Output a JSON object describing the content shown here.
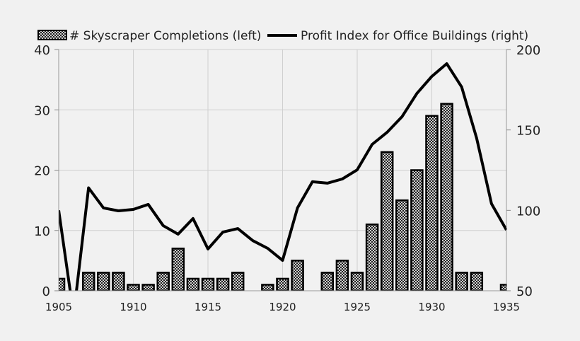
{
  "chart_data": {
    "type": "bar+line",
    "x": [
      1905,
      1906,
      1907,
      1908,
      1909,
      1910,
      1911,
      1912,
      1913,
      1914,
      1915,
      1916,
      1917,
      1918,
      1919,
      1920,
      1921,
      1922,
      1923,
      1924,
      1925,
      1926,
      1927,
      1928,
      1929,
      1930,
      1931,
      1932,
      1933,
      1934,
      1935
    ],
    "xticks": [
      "1905",
      "1910",
      "1915",
      "1920",
      "1925",
      "1930",
      "1935"
    ],
    "xlim": [
      1905,
      1935
    ],
    "series": [
      {
        "name": "# Skyscraper Completions (left)",
        "type": "bar",
        "axis": "left",
        "values": [
          2,
          0,
          3,
          3,
          3,
          1,
          1,
          3,
          7,
          2,
          2,
          2,
          3,
          0,
          1,
          2,
          5,
          0,
          3,
          5,
          3,
          11,
          23,
          15,
          20,
          29,
          31,
          3,
          3,
          0,
          1
        ]
      },
      {
        "name": "Profit Index for Office Buildings (right)",
        "type": "line",
        "axis": "right",
        "values": [
          100,
          35,
          114,
          101.5,
          99.7,
          100.6,
          103.7,
          90.5,
          85.2,
          94.9,
          76,
          86.5,
          88.7,
          81.2,
          76.4,
          68.9,
          101.5,
          117.8,
          116.9,
          119.5,
          125.2,
          141,
          148.5,
          158.2,
          172.7,
          183.3,
          191.2,
          176.7,
          145,
          104.1,
          87.8
        ]
      }
    ],
    "left_axis": {
      "ylim": [
        0,
        40
      ],
      "ticks": [
        "0",
        "10",
        "20",
        "30",
        "40"
      ]
    },
    "right_axis": {
      "ylim": [
        50,
        200
      ],
      "ticks": [
        "50",
        "100",
        "150",
        "200"
      ]
    },
    "grid": true,
    "legend": "top",
    "colors": {
      "background": "#f1f1f1",
      "line": "#000000",
      "bar_fill": "#ffffff",
      "bar_pattern": "#000000",
      "grid": "#d0d0d0"
    }
  }
}
